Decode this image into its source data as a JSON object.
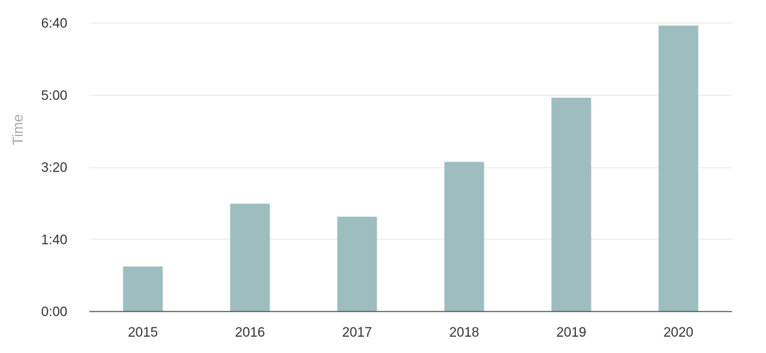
{
  "chart_data": {
    "type": "bar",
    "title": "",
    "xlabel": "",
    "ylabel": "Time",
    "y_unit": "seconds",
    "categories": [
      "2015",
      "2016",
      "2017",
      "2018",
      "2019",
      "2020"
    ],
    "values": [
      62,
      149,
      131,
      207,
      296,
      396
    ],
    "ylim": [
      0,
      400
    ],
    "yticks": [
      0,
      100,
      200,
      300,
      400
    ],
    "ytick_labels": [
      "0:00",
      "1:40",
      "3:20",
      "5:00",
      "6:40"
    ],
    "grid": true,
    "legend": "none",
    "colors": {
      "bar": "#9dbdbe",
      "grid": "#ececec",
      "axis": "#555555",
      "tick_text": "#333333",
      "axis_title": "#a8a8a8"
    }
  }
}
